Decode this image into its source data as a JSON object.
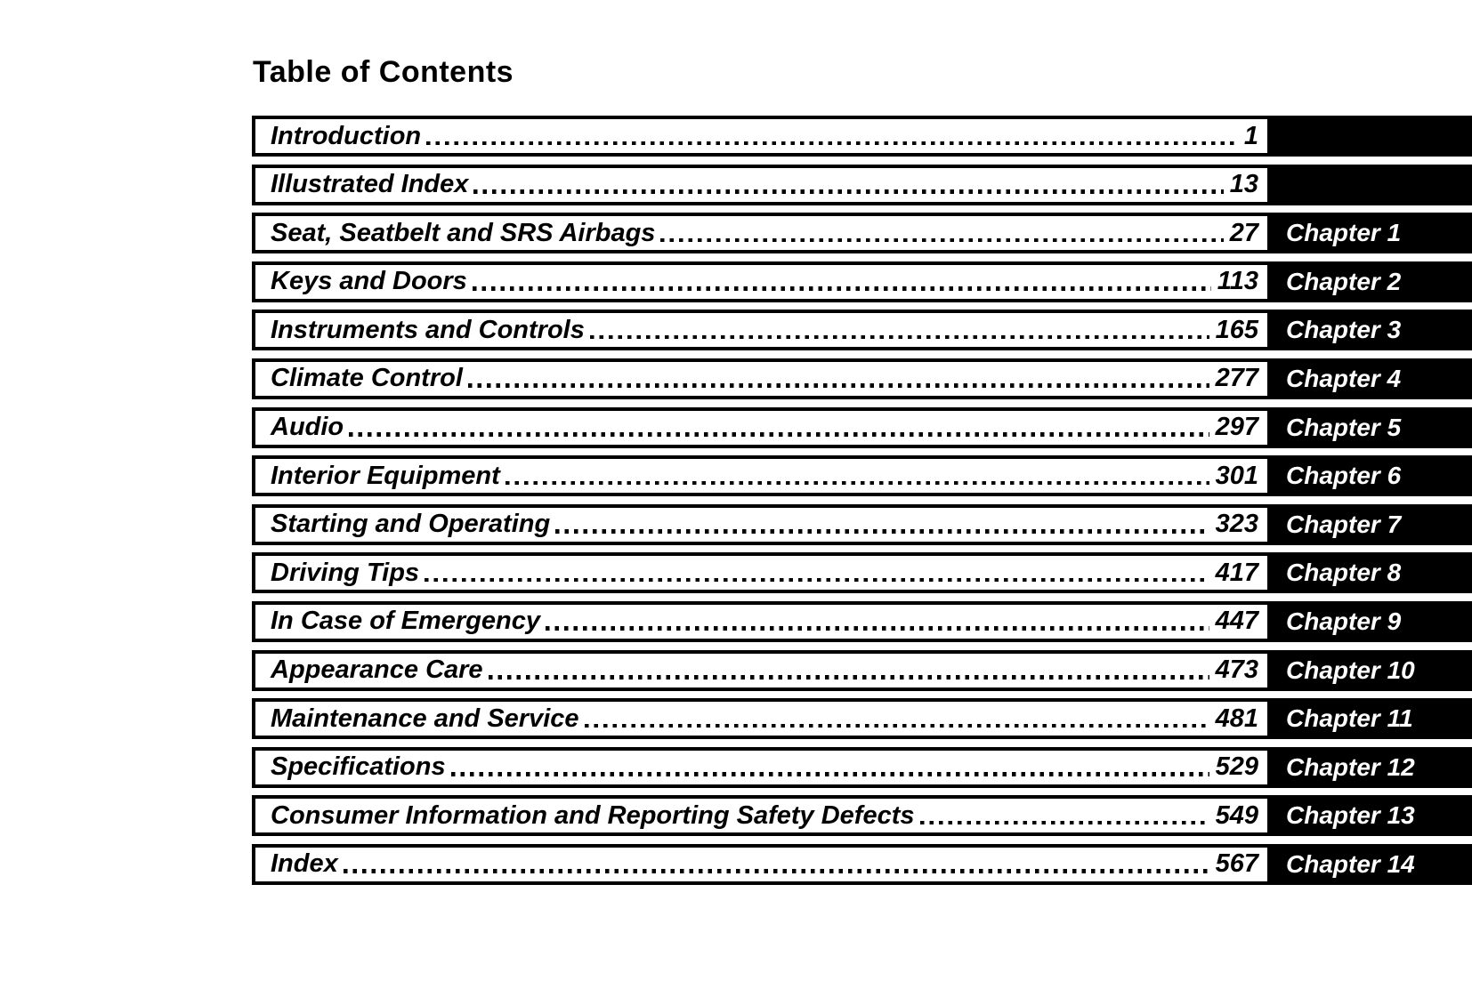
{
  "header": {
    "title": "Table of Contents"
  },
  "colors": {
    "ink": "#000000",
    "paper": "#ffffff",
    "tab_background": "#000000",
    "tab_text": "#ffffff"
  },
  "toc": {
    "entries": [
      {
        "label": "Introduction",
        "page": "1",
        "chapter": ""
      },
      {
        "label": "Illustrated Index",
        "page": "13",
        "chapter": ""
      },
      {
        "label": "Seat, Seatbelt and SRS Airbags",
        "page": "27",
        "chapter": "Chapter 1"
      },
      {
        "label": "Keys and Doors",
        "page": "113",
        "chapter": "Chapter 2"
      },
      {
        "label": "Instruments and Controls",
        "page": "165",
        "chapter": "Chapter 3"
      },
      {
        "label": "Climate Control",
        "page": "277",
        "chapter": "Chapter 4"
      },
      {
        "label": "Audio",
        "page": "297",
        "chapter": "Chapter 5"
      },
      {
        "label": "Interior Equipment",
        "page": "301",
        "chapter": "Chapter 6"
      },
      {
        "label": "Starting and Operating",
        "page": "323",
        "chapter": "Chapter 7"
      },
      {
        "label": "Driving Tips",
        "page": "417",
        "chapter": "Chapter 8"
      },
      {
        "label": "In Case of Emergency",
        "page": "447",
        "chapter": "Chapter 9"
      },
      {
        "label": "Appearance Care",
        "page": "473",
        "chapter": "Chapter 10"
      },
      {
        "label": "Maintenance and Service",
        "page": "481",
        "chapter": "Chapter 11"
      },
      {
        "label": "Specifications",
        "page": "529",
        "chapter": "Chapter 12"
      },
      {
        "label": "Consumer Information and Reporting Safety Defects",
        "page": "549",
        "chapter": "Chapter 13"
      },
      {
        "label": "Index",
        "page": "567",
        "chapter": "Chapter 14"
      }
    ]
  }
}
